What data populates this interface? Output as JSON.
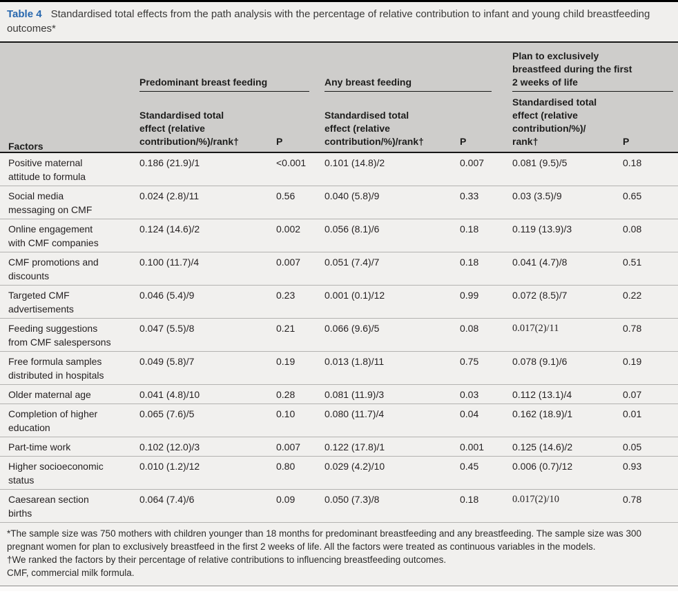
{
  "title": {
    "label": "Table 4",
    "caption": "Standardised total effects from the path analysis with the percentage of relative contribution to infant and young child breastfeeding outcomes*"
  },
  "header": {
    "factors": "Factors",
    "groups": [
      "Predominant breast feeding",
      "Any breast feeding",
      "Plan to exclusively\nbreastfeed during the first\n2 weeks of life"
    ],
    "effect_cols": [
      "Standardised total\neffect (relative\ncontribution/%)/rank†",
      "Standardised total\neffect (relative\ncontribution/%)/rank†",
      "Standardised total\neffect (relative\ncontribution/%)/\nrank†"
    ],
    "p": "P"
  },
  "rows": [
    {
      "factor": "Positive maternal\nattitude to formula",
      "cells": [
        "0.186 (21.9)/1",
        "<0.001",
        "0.101 (14.8)/2",
        "0.007",
        "0.081 (9.5)/5",
        "0.18"
      ],
      "serif": []
    },
    {
      "factor": "Social media\nmessaging on CMF",
      "cells": [
        "0.024 (2.8)/11",
        "0.56",
        "0.040 (5.8)/9",
        "0.33",
        "0.03 (3.5)/9",
        "0.65"
      ],
      "serif": []
    },
    {
      "factor": "Online engagement\nwith CMF companies",
      "cells": [
        "0.124 (14.6)/2",
        "0.002",
        "0.056 (8.1)/6",
        "0.18",
        "0.119 (13.9)/3",
        "0.08"
      ],
      "serif": []
    },
    {
      "factor": "CMF promotions and\ndiscounts",
      "cells": [
        "0.100 (11.7)/4",
        "0.007",
        "0.051 (7.4)/7",
        "0.18",
        "0.041 (4.7)/8",
        "0.51"
      ],
      "serif": []
    },
    {
      "factor": "Targeted CMF\nadvertisements",
      "cells": [
        "0.046 (5.4)/9",
        "0.23",
        "0.001 (0.1)/12",
        "0.99",
        "0.072 (8.5)/7",
        "0.22"
      ],
      "serif": []
    },
    {
      "factor": "Feeding suggestions\nfrom CMF salespersons",
      "cells": [
        "0.047 (5.5)/8",
        "0.21",
        "0.066 (9.6)/5",
        "0.08",
        "0.017(2)/11",
        "0.78"
      ],
      "serif": [
        4
      ]
    },
    {
      "factor": "Free formula samples\ndistributed in hospitals",
      "cells": [
        "0.049 (5.8)/7",
        "0.19",
        "0.013 (1.8)/11",
        "0.75",
        "0.078 (9.1)/6",
        "0.19"
      ],
      "serif": []
    },
    {
      "factor": "Older maternal age",
      "cells": [
        "0.041 (4.8)/10",
        "0.28",
        "0.081 (11.9)/3",
        "0.03",
        "0.112 (13.1)/4",
        "0.07"
      ],
      "serif": []
    },
    {
      "factor": "Completion of higher\neducation",
      "cells": [
        "0.065 (7.6)/5",
        "0.10",
        "0.080 (11.7)/4",
        "0.04",
        "0.162 (18.9)/1",
        "0.01"
      ],
      "serif": []
    },
    {
      "factor": "Part-time work",
      "cells": [
        "0.102 (12.0)/3",
        "0.007",
        "0.122 (17.8)/1",
        "0.001",
        "0.125 (14.6)/2",
        "0.05"
      ],
      "serif": []
    },
    {
      "factor": "Higher socioeconomic\nstatus",
      "cells": [
        "0.010 (1.2)/12",
        "0.80",
        "0.029 (4.2)/10",
        "0.45",
        "0.006 (0.7)/12",
        "0.93"
      ],
      "serif": []
    },
    {
      "factor": "Caesarean section\nbirths",
      "cells": [
        "0.064 (7.4)/6",
        "0.09",
        "0.050 (7.3)/8",
        "0.18",
        "0.017(2)/10",
        "0.78"
      ],
      "serif": [
        4
      ]
    }
  ],
  "footnotes": [
    "*The sample size was 750 mothers with children younger than 18 months for predominant breastfeeding and any breastfeeding. The sample size was 300 pregnant women for plan to exclusively breastfeed in the first 2 weeks of life. All the factors were treated as continuous variables in the models.",
    "†We ranked the factors by their percentage of relative contributions to influencing breastfeeding outcomes.",
    "CMF, commercial milk formula."
  ],
  "colors": {
    "accent_blue": "#2767ae",
    "header_bg": "#cecdcb",
    "body_bg": "#f1f0ee",
    "rule_dark": "#161616",
    "row_line": "#b3b2b0"
  }
}
